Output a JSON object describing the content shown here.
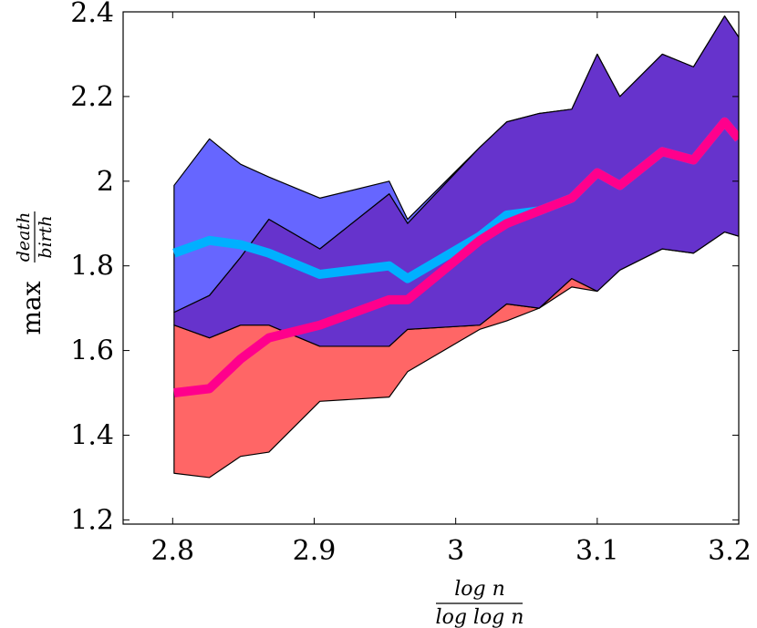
{
  "chart_data": {
    "type": "area",
    "xlabel": {
      "numerator": "log n",
      "denominator": "log log n"
    },
    "ylabel": {
      "prefix": "max",
      "numerator": "death",
      "denominator": "birth"
    },
    "xlim": [
      2.765,
      3.2
    ],
    "ylim": [
      1.19,
      2.4
    ],
    "xticks": [
      2.8,
      2.9,
      3.0,
      3.1,
      3.2
    ],
    "xtick_labels": [
      "2.8",
      "2.9",
      "3",
      "3.1",
      "3.2"
    ],
    "yticks": [
      1.2,
      1.4,
      1.6,
      1.8,
      2.0,
      2.2,
      2.4
    ],
    "ytick_labels": [
      "1.2",
      "1.4",
      "1.6",
      "1.8",
      "2",
      "2.2",
      "2.4"
    ],
    "grid": false,
    "x": [
      2.801,
      2.826,
      2.848,
      2.868,
      2.904,
      2.953,
      2.966,
      3.017,
      3.036,
      3.059,
      3.082,
      3.1,
      3.116,
      3.146,
      3.168,
      3.19,
      3.2
    ],
    "series": [
      {
        "color": "#6666ff",
        "lower": [
          1.69,
          1.73,
          1.82,
          1.91,
          1.84,
          1.97,
          1.9,
          2.08,
          2.14,
          2.16,
          2.17,
          2.3,
          2.2,
          2.3,
          2.27,
          2.39,
          2.34
        ],
        "upper": [
          1.99,
          2.1,
          2.04,
          2.01,
          1.96,
          2.0,
          1.91,
          2.08,
          2.14,
          2.16,
          2.17,
          2.3,
          2.2,
          2.3,
          2.27,
          2.39,
          2.34
        ],
        "mean": [
          1.83,
          1.86,
          1.85,
          1.83,
          1.78,
          1.8,
          1.77,
          1.87,
          1.92,
          1.93,
          1.96,
          2.02,
          1.99,
          2.07,
          2.05,
          2.14,
          2.1
        ]
      },
      {
        "color": "#ff6666",
        "lower": [
          1.31,
          1.3,
          1.35,
          1.36,
          1.48,
          1.49,
          1.55,
          1.65,
          1.67,
          1.7,
          1.75,
          1.74,
          1.79,
          1.84,
          1.83,
          1.88,
          1.87
        ],
        "upper": [
          1.66,
          1.63,
          1.66,
          1.66,
          1.61,
          1.61,
          1.65,
          1.66,
          1.71,
          1.7,
          1.77,
          1.74,
          1.79,
          1.84,
          1.83,
          1.88,
          1.87
        ],
        "mean": [
          1.5,
          1.51,
          1.58,
          1.63,
          1.66,
          1.72,
          1.72,
          1.86,
          1.9,
          1.93,
          1.96,
          2.02,
          1.99,
          2.07,
          2.05,
          2.14,
          2.1
        ]
      }
    ],
    "overlap_color": "#6633cc",
    "mean_line_colors": [
      "#00b0ff",
      "#ff008c"
    ]
  }
}
